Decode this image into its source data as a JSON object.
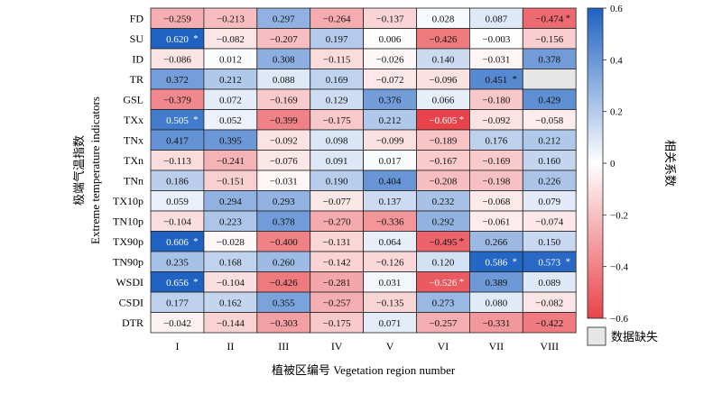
{
  "chart_data": {
    "type": "heatmap",
    "xlabel": "植被区编号 Vegetation region number",
    "ylabel_line1": "极端气温指数",
    "ylabel_line2": "Extreme temperature indicators",
    "rows": [
      "FD",
      "SU",
      "ID",
      "TR",
      "GSL",
      "TXx",
      "TNx",
      "TXn",
      "TNn",
      "TX10p",
      "TN10p",
      "TX90p",
      "TN90p",
      "WSDI",
      "CSDI",
      "DTR"
    ],
    "columns": [
      "I",
      "II",
      "III",
      "IV",
      "V",
      "VI",
      "VII",
      "VIII"
    ],
    "values": [
      [
        -0.259,
        -0.213,
        0.297,
        -0.264,
        -0.137,
        0.028,
        0.087,
        -0.474
      ],
      [
        0.62,
        -0.082,
        -0.207,
        0.197,
        0.006,
        -0.426,
        -0.003,
        -0.156
      ],
      [
        -0.086,
        0.012,
        0.308,
        -0.115,
        -0.026,
        0.14,
        -0.031,
        0.378
      ],
      [
        0.372,
        0.212,
        0.088,
        0.169,
        -0.072,
        -0.096,
        0.451,
        null
      ],
      [
        -0.379,
        0.072,
        -0.169,
        0.129,
        0.376,
        0.066,
        -0.18,
        0.429
      ],
      [
        0.505,
        0.052,
        -0.399,
        -0.175,
        0.212,
        -0.605,
        -0.092,
        -0.058
      ],
      [
        0.417,
        0.395,
        -0.092,
        0.098,
        -0.099,
        -0.189,
        0.176,
        0.212
      ],
      [
        -0.113,
        -0.241,
        -0.076,
        0.091,
        0.017,
        -0.167,
        -0.169,
        0.16
      ],
      [
        0.186,
        -0.151,
        -0.031,
        0.19,
        0.404,
        -0.208,
        -0.198,
        0.226
      ],
      [
        0.059,
        0.294,
        0.293,
        -0.077,
        0.137,
        0.232,
        -0.068,
        0.079
      ],
      [
        -0.104,
        0.223,
        0.378,
        -0.27,
        -0.336,
        0.292,
        -0.061,
        -0.074
      ],
      [
        0.606,
        -0.028,
        -0.4,
        -0.131,
        0.064,
        -0.495,
        0.266,
        0.15
      ],
      [
        0.235,
        0.168,
        0.26,
        -0.142,
        -0.126,
        0.12,
        0.586,
        0.573
      ],
      [
        0.656,
        -0.104,
        -0.426,
        -0.281,
        0.031,
        -0.526,
        0.389,
        0.089
      ],
      [
        0.177,
        0.162,
        0.355,
        -0.257,
        -0.135,
        0.273,
        0.08,
        -0.082
      ],
      [
        -0.042,
        -0.144,
        -0.303,
        -0.175,
        0.071,
        -0.257,
        -0.331,
        -0.422
      ]
    ],
    "significant": [
      [
        0,
        7
      ],
      [
        1,
        0
      ],
      [
        3,
        6
      ],
      [
        5,
        0
      ],
      [
        5,
        5
      ],
      [
        11,
        0
      ],
      [
        11,
        5
      ],
      [
        12,
        6
      ],
      [
        12,
        7
      ],
      [
        13,
        0
      ],
      [
        13,
        5
      ]
    ],
    "significance_marker": "*",
    "colorbar": {
      "label": "相关系数",
      "range": [
        -0.6,
        0.6
      ],
      "ticks": [
        0.6,
        0.4,
        0.2,
        0,
        -0.2,
        -0.4,
        -0.6
      ],
      "tick_labels": [
        "0.6",
        "0.4",
        "0.2",
        "0",
        "−0.2",
        "−0.4",
        "−0.6"
      ],
      "negative_color": "#e8434a",
      "neutral_color": "#ffffff",
      "positive_color": "#1f62c2"
    },
    "missing_legend": {
      "label": "数据缺失",
      "color": "#e6e6e6"
    }
  }
}
